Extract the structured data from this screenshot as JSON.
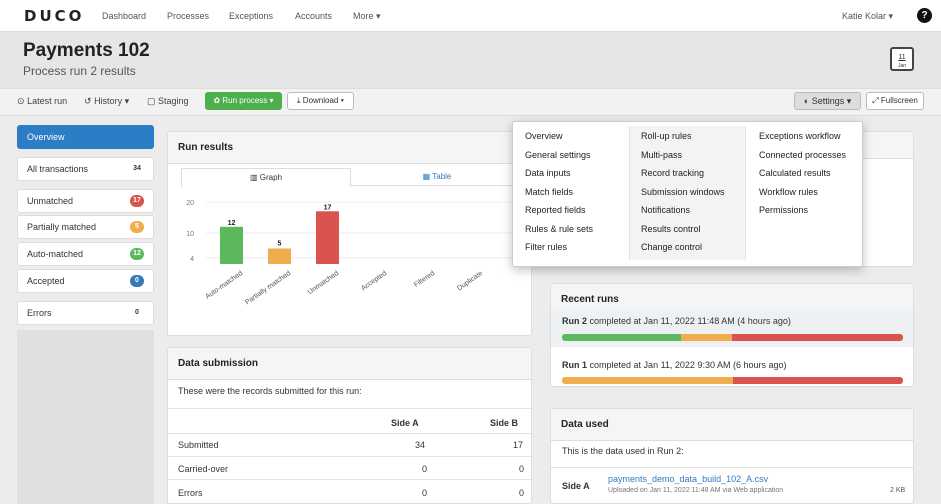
{
  "app": {
    "logo": "DUCO"
  },
  "nav": {
    "items": [
      "Dashboard",
      "Processes",
      "Exceptions",
      "Accounts",
      "More ▾"
    ],
    "user": "Katie Kolar ▾",
    "help": "?"
  },
  "header": {
    "title": "Payments 102",
    "subtitle": "Process run 2 results",
    "calendar_day": "11",
    "calendar_month": "Jan"
  },
  "toolbar": {
    "latest_run": "Latest run",
    "history": "History ▾",
    "staging": "Staging",
    "run_process": "Run process ▾",
    "download": "Download ▾",
    "settings": "Settings ▾",
    "fullscreen": "Fullscreen"
  },
  "sidebar": {
    "items": [
      {
        "label": "Overview",
        "count": ""
      },
      {
        "label": "All transactions",
        "count": "34"
      },
      {
        "label": "Unmatched",
        "count": "17"
      },
      {
        "label": "Partially matched",
        "count": "5"
      },
      {
        "label": "Auto-matched",
        "count": "12"
      },
      {
        "label": "Accepted",
        "count": "0"
      },
      {
        "label": "Errors",
        "count": "0"
      }
    ]
  },
  "run_results": {
    "title": "Run results",
    "tab_graph": "Graph",
    "tab_table": "Table"
  },
  "chart_data": {
    "type": "bar",
    "categories": [
      "Auto-matched",
      "Partially matched",
      "Unmatched",
      "Accepted",
      "Filtered",
      "Duplicate"
    ],
    "values": [
      12,
      5,
      17,
      0,
      0,
      0
    ],
    "colors": [
      "#5cb85c",
      "#f0ad4e",
      "#d9534f",
      "#5bc0de",
      "#999999",
      "#999999"
    ],
    "yticks": [
      "20",
      "10",
      "4"
    ],
    "ylim": [
      0,
      20
    ]
  },
  "data_submission": {
    "title": "Data submission",
    "intro": "These were the records submitted for this run:",
    "columns": [
      "Side A",
      "Side B"
    ],
    "rows": [
      {
        "label": "Submitted",
        "a": "34",
        "b": "17"
      },
      {
        "label": "Carried-over",
        "a": "0",
        "b": "0"
      },
      {
        "label": "Errors",
        "a": "0",
        "b": "0"
      }
    ]
  },
  "recent_runs": {
    "title": "Recent runs",
    "runs": [
      {
        "name": "Run 2",
        "text": "completed at Jan 11, 2022 11:48 AM (4 hours ago)",
        "green": 0.35,
        "orange": 0.15,
        "red": 0.5
      },
      {
        "name": "Run 1",
        "text": "completed at Jan 11, 2022 9:30 AM (6 hours ago)",
        "green": 0.0,
        "orange": 0.5,
        "red": 0.5
      }
    ]
  },
  "data_used": {
    "title": "Data used",
    "intro": "This is the data used in Run 2:",
    "side": "Side A",
    "file": "payments_demo_data_build_102_A.csv",
    "meta": "Uploaded on Jan 11, 2022 11:48 AM via Web application",
    "size": "2 KB"
  },
  "settings_menu": {
    "col1": [
      "Overview",
      "General settings",
      "Data inputs",
      "Match fields",
      "Reported fields",
      "Rules & rule sets",
      "Filter rules"
    ],
    "col2": [
      "Roll-up rules",
      "Multi-pass",
      "Record tracking",
      "Submission windows",
      "Notifications",
      "Results control",
      "Change control"
    ],
    "col3": [
      "Exceptions workflow",
      "Connected processes",
      "Calculated results",
      "Workflow rules",
      "Permissions"
    ]
  }
}
